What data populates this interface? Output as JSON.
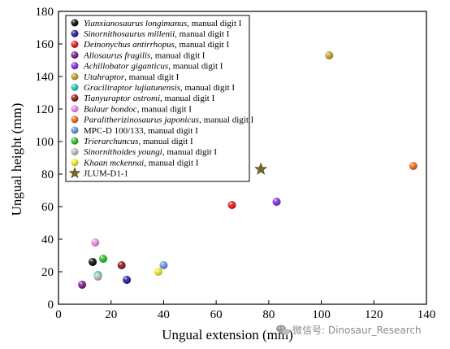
{
  "chart_data": {
    "type": "scatter",
    "xlabel": "Ungual extension (mm)",
    "ylabel": "Ungual height (mm)",
    "xlim": [
      0,
      140
    ],
    "ylim": [
      0,
      180
    ],
    "xticks": [
      "0",
      "20",
      "40",
      "60",
      "80",
      "100",
      "120",
      "140"
    ],
    "yticks": [
      "0",
      "20",
      "40",
      "60",
      "80",
      "100",
      "120",
      "140",
      "160",
      "180"
    ],
    "legend_position": "top-left",
    "grid": false,
    "series": [
      {
        "name_italic": "Yianxianosaurus longimanus",
        "name_rest": ", manual digit I",
        "color": "#0a0a0a",
        "marker": "circle",
        "points": [
          [
            13,
            26
          ]
        ]
      },
      {
        "name_italic": "Sinornithosaurus millenii",
        "name_rest": ", manual digit I",
        "color": "#1c1c9a",
        "marker": "circle",
        "points": [
          [
            26,
            15
          ]
        ]
      },
      {
        "name_italic": "Deinonychus antirrhopus",
        "name_rest": ", manual digit I",
        "color": "#e11b1b",
        "marker": "circle",
        "points": [
          [
            66,
            61
          ]
        ]
      },
      {
        "name_italic": "Allosaurus fragilis",
        "name_rest": ", manual digit I",
        "color": "#7a1a8a",
        "marker": "circle",
        "points": [
          [
            9,
            12
          ]
        ]
      },
      {
        "name_italic": "Achillobator giganticus",
        "name_rest": ", manual digit I",
        "color": "#8a2be2",
        "marker": "circle",
        "points": [
          [
            83,
            63
          ]
        ]
      },
      {
        "name_italic": "Utahraptor",
        "name_rest": ", manual digit I",
        "color": "#c9a227",
        "marker": "circle",
        "points": [
          [
            103,
            153
          ]
        ]
      },
      {
        "name_italic": "Graciliraptor lujiatunensis",
        "name_rest": ", manual digit I",
        "color": "#2bc3c9",
        "marker": "circle",
        "points": [
          [
            15,
            18
          ]
        ]
      },
      {
        "name_italic": "Tianyuraptor ostromi",
        "name_rest": ", manual digit I",
        "color": "#8b1a1a",
        "marker": "circle",
        "points": [
          [
            24,
            24
          ]
        ]
      },
      {
        "name_italic": "Balaur bondoc",
        "name_rest": ", manual digit I",
        "color": "#f28be8",
        "marker": "circle",
        "points": [
          [
            14,
            38
          ]
        ]
      },
      {
        "name_italic": "Paralitherizinosaurus japonicus",
        "name_rest": ", manual digit I",
        "color": "#f26a1b",
        "marker": "circle",
        "points": [
          [
            135,
            85
          ]
        ]
      },
      {
        "name_italic": "",
        "name_rest": "MPC-D 100/133, manual digit I",
        "color": "#6a96d8",
        "marker": "circle",
        "points": [
          [
            40,
            24
          ]
        ]
      },
      {
        "name_italic": "Trierarchuncus",
        "name_rest": ", manual digit I",
        "color": "#27c227",
        "marker": "circle",
        "points": [
          [
            17,
            28
          ]
        ]
      },
      {
        "name_italic": "Sinornithoides youngi",
        "name_rest": ", manual digit I",
        "color": "#bdbdbd",
        "marker": "circle",
        "points": [
          [
            15,
            17
          ]
        ]
      },
      {
        "name_italic": "Khaan mckennai",
        "name_rest": ", manual digit I",
        "color": "#f2ee2a",
        "marker": "circle",
        "points": [
          [
            38,
            20
          ]
        ]
      },
      {
        "name_italic": "",
        "name_rest": "JLUM-D1-1",
        "color": "#7a6a1f",
        "marker": "star",
        "points": [
          [
            77,
            83
          ]
        ]
      }
    ]
  },
  "watermark": {
    "icon": "wechat-icon",
    "text": "微信号: Dinosaur_Research"
  }
}
